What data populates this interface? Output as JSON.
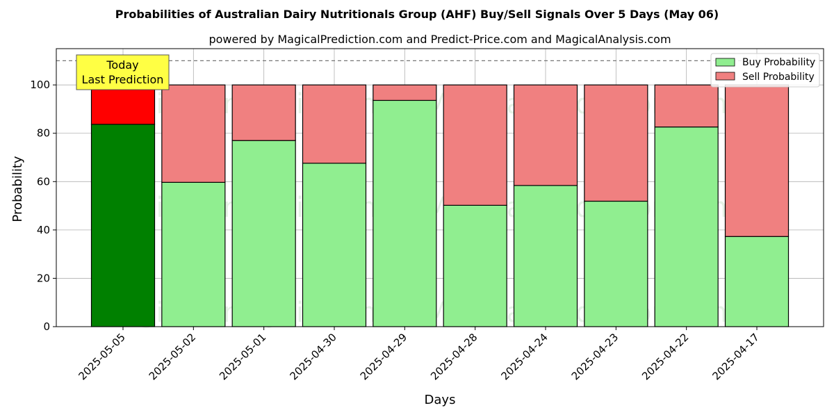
{
  "chart_data": {
    "type": "bar",
    "stacked": true,
    "title": "Probabilities of Australian Dairy Nutritionals Group (AHF) Buy/Sell Signals Over 5 Days (May 06)",
    "subtitle": "powered by MagicalPrediction.com and Predict-Price.com and MagicalAnalysis.com",
    "xlabel": "Days",
    "ylabel": "Probability",
    "ylim": [
      0,
      115
    ],
    "yticks": [
      0,
      20,
      40,
      60,
      80,
      100
    ],
    "threshold_line": 110,
    "grid": true,
    "legend_position": "top-right",
    "categories": [
      "2025-05-05",
      "2025-05-02",
      "2025-05-01",
      "2025-04-30",
      "2025-04-29",
      "2025-04-28",
      "2025-04-24",
      "2025-04-23",
      "2025-04-22",
      "2025-04-17"
    ],
    "series": [
      {
        "name": "Buy Probability",
        "color": "#90ee90",
        "highlight_color": "#008000",
        "values": [
          83.7,
          59.7,
          77.0,
          67.6,
          93.6,
          50.2,
          58.4,
          51.9,
          82.6,
          37.3
        ]
      },
      {
        "name": "Sell Probability",
        "color": "#f08080",
        "highlight_color": "#ff0000",
        "values": [
          16.3,
          40.3,
          23.0,
          32.4,
          6.4,
          49.8,
          41.6,
          48.1,
          17.4,
          62.7
        ]
      }
    ],
    "annotation": {
      "lines": [
        "Today",
        "Last Prediction"
      ],
      "color": "#ffff44"
    },
    "watermarks": [
      "MagicalAnalysis.com",
      "MagicalPrediction.com"
    ]
  }
}
